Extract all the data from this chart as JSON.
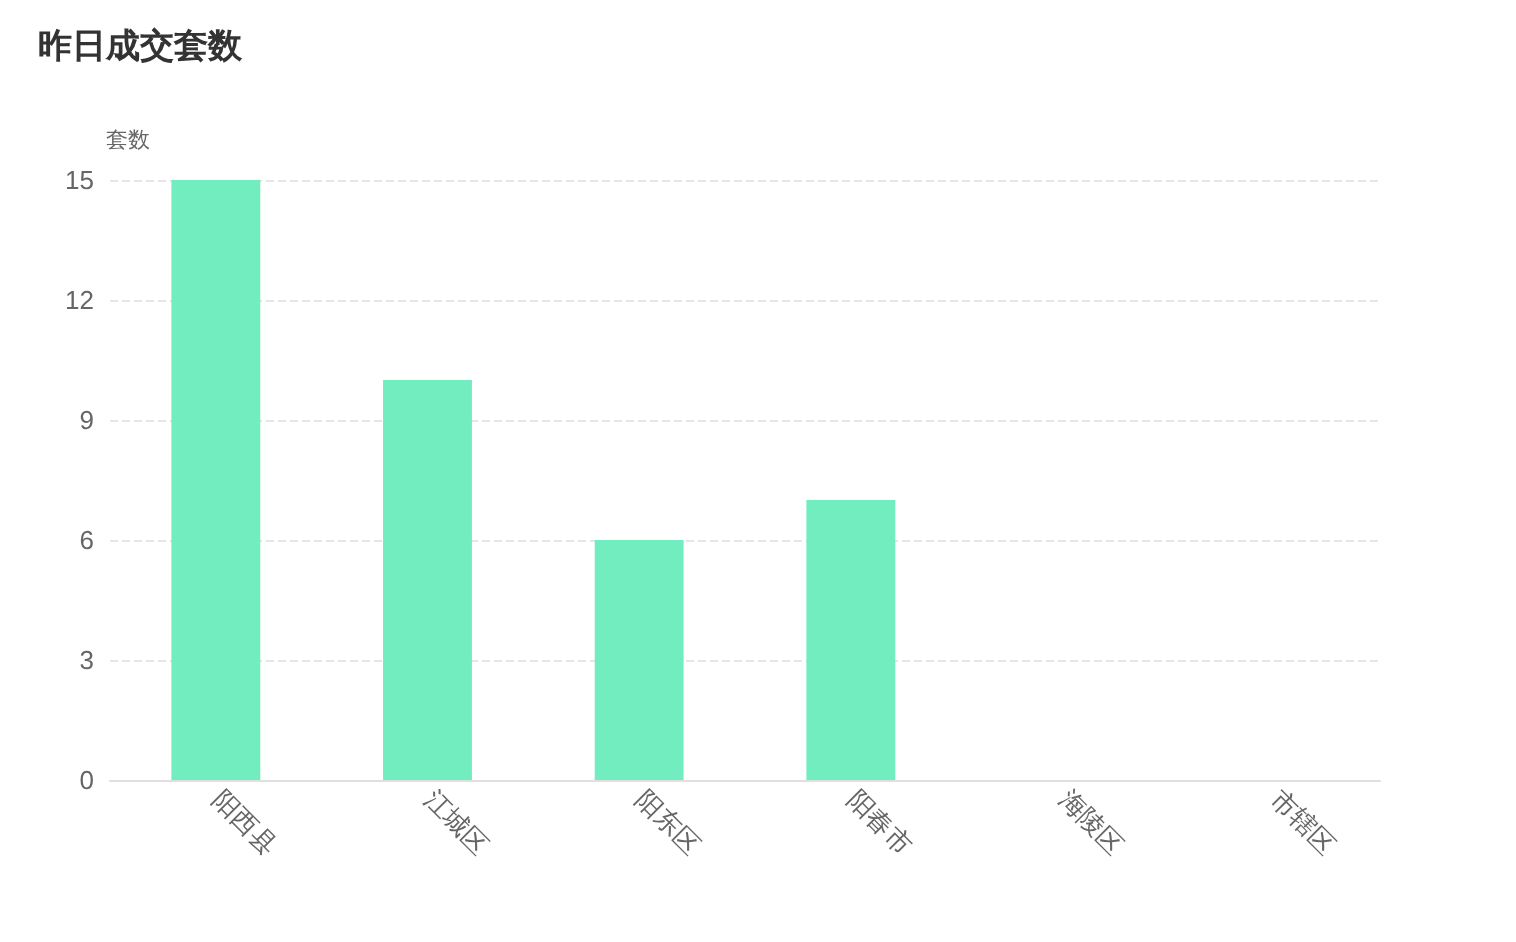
{
  "chart_data": {
    "type": "bar",
    "title": "昨日成交套数",
    "ylabel": "套数",
    "categories": [
      "阳西县",
      "江城区",
      "阳东区",
      "阳春市",
      "海陵区",
      "市辖区"
    ],
    "values": [
      15,
      10,
      6,
      7,
      0,
      0
    ],
    "color": "#72edc0",
    "ylim": [
      0,
      15
    ],
    "yticks": [
      0,
      3,
      6,
      9,
      12,
      15
    ],
    "grid": "y"
  }
}
